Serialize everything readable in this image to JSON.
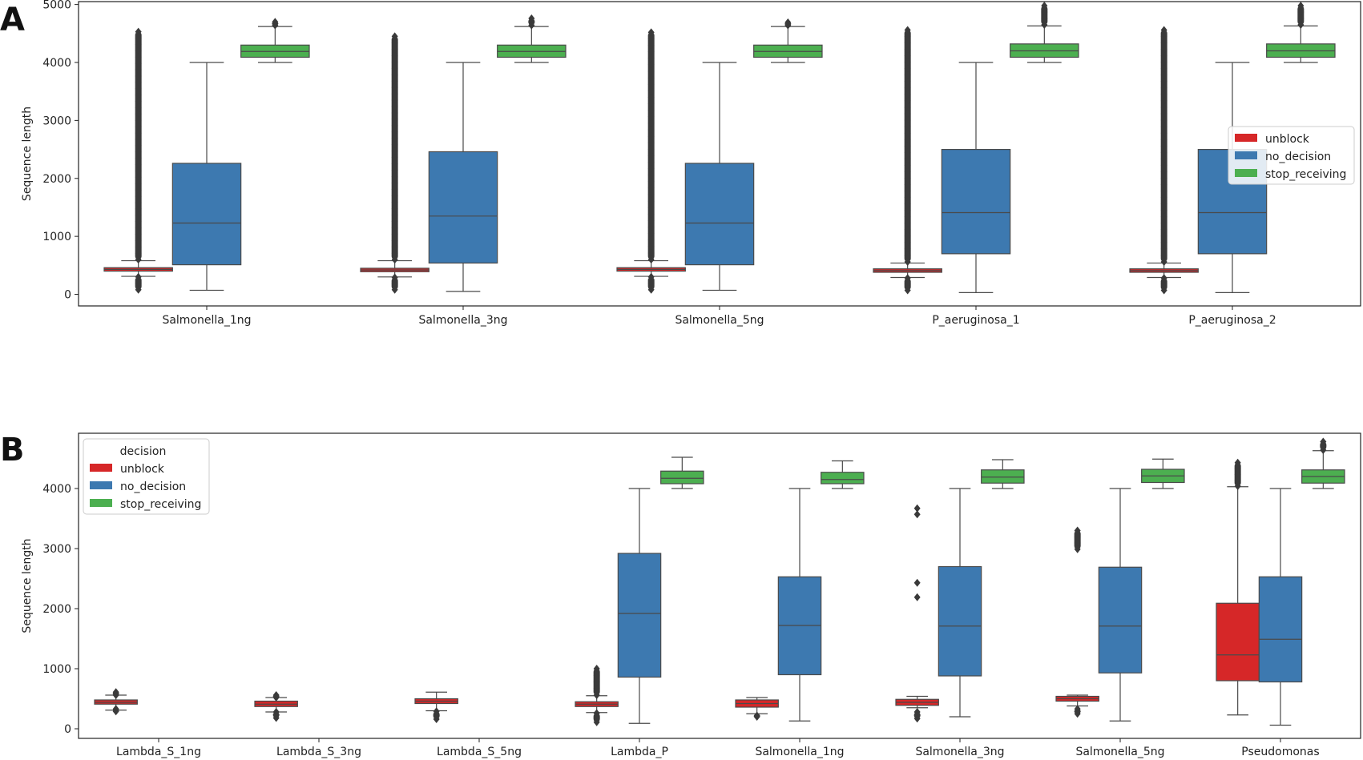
{
  "chart_data": [
    {
      "panel": "A",
      "type": "box",
      "ylabel": "Sequence length",
      "ylim": [
        -200,
        5050
      ],
      "yticks": [
        0,
        1000,
        2000,
        3000,
        4000,
        5000
      ],
      "grid": false,
      "legend": {
        "title": "",
        "placement": "right",
        "entries": [
          "unblock",
          "no_decision",
          "stop_receiving"
        ]
      },
      "colors": {
        "unblock": "#d62728",
        "no_decision": "#3d79b0",
        "stop_receiving": "#4caf50"
      },
      "categories": [
        "Salmonella_1ng",
        "Salmonella_3ng",
        "Salmonella_5ng",
        "P_aeruginosa_1",
        "P_aeruginosa_2"
      ],
      "series": [
        {
          "name": "unblock",
          "boxes": [
            {
              "q1": 400,
              "median": 430,
              "q3": 460,
              "whislo": 310,
              "whishi": 580,
              "out_lo": [
                80,
                300
              ],
              "out_hi": [
                600,
                4530
              ]
            },
            {
              "q1": 390,
              "median": 420,
              "q3": 450,
              "whislo": 300,
              "whishi": 580,
              "out_lo": [
                80,
                290
              ],
              "out_hi": [
                600,
                4450
              ]
            },
            {
              "q1": 400,
              "median": 430,
              "q3": 460,
              "whislo": 310,
              "whishi": 580,
              "out_lo": [
                80,
                300
              ],
              "out_hi": [
                600,
                4520
              ]
            },
            {
              "q1": 380,
              "median": 410,
              "q3": 440,
              "whislo": 290,
              "whishi": 540,
              "out_lo": [
                70,
                280
              ],
              "out_hi": [
                560,
                4560
              ]
            },
            {
              "q1": 380,
              "median": 410,
              "q3": 440,
              "whislo": 290,
              "whishi": 540,
              "out_lo": [
                70,
                280
              ],
              "out_hi": [
                560,
                4560
              ]
            }
          ]
        },
        {
          "name": "no_decision",
          "boxes": [
            {
              "q1": 510,
              "median": 1230,
              "q3": 2260,
              "whislo": 70,
              "whishi": 4000,
              "out_lo": null,
              "out_hi": null
            },
            {
              "q1": 540,
              "median": 1350,
              "q3": 2460,
              "whislo": 50,
              "whishi": 4000,
              "out_lo": null,
              "out_hi": null
            },
            {
              "q1": 510,
              "median": 1230,
              "q3": 2260,
              "whislo": 70,
              "whishi": 4000,
              "out_lo": null,
              "out_hi": null
            },
            {
              "q1": 700,
              "median": 1410,
              "q3": 2500,
              "whislo": 30,
              "whishi": 4000,
              "out_lo": null,
              "out_hi": null
            },
            {
              "q1": 700,
              "median": 1410,
              "q3": 2500,
              "whislo": 30,
              "whishi": 4000,
              "out_lo": null,
              "out_hi": null
            }
          ]
        },
        {
          "name": "stop_receiving",
          "boxes": [
            {
              "q1": 4090,
              "median": 4190,
              "q3": 4300,
              "whislo": 4000,
              "whishi": 4620,
              "out_lo": null,
              "out_hi": [
                4640,
                4700
              ]
            },
            {
              "q1": 4090,
              "median": 4190,
              "q3": 4300,
              "whislo": 4000,
              "whishi": 4620,
              "out_lo": null,
              "out_hi": [
                4640,
                4760
              ]
            },
            {
              "q1": 4090,
              "median": 4190,
              "q3": 4300,
              "whislo": 4000,
              "whishi": 4620,
              "out_lo": null,
              "out_hi": [
                4640,
                4690
              ]
            },
            {
              "q1": 4090,
              "median": 4200,
              "q3": 4320,
              "whislo": 4000,
              "whishi": 4630,
              "out_lo": null,
              "out_hi": [
                4650,
                4980
              ]
            },
            {
              "q1": 4090,
              "median": 4200,
              "q3": 4320,
              "whislo": 4000,
              "whishi": 4630,
              "out_lo": null,
              "out_hi": [
                4650,
                4980
              ]
            }
          ]
        }
      ]
    },
    {
      "panel": "B",
      "type": "box",
      "ylabel": "Sequence length",
      "ylim": [
        -160,
        4920
      ],
      "yticks": [
        0,
        1000,
        2000,
        3000,
        4000
      ],
      "grid": false,
      "legend": {
        "title": "decision",
        "placement": "upper-left",
        "entries": [
          "unblock",
          "no_decision",
          "stop_receiving"
        ]
      },
      "colors": {
        "unblock": "#d62728",
        "no_decision": "#3d79b0",
        "stop_receiving": "#4caf50"
      },
      "categories": [
        "Lambda_S_1ng",
        "Lambda_S_3ng",
        "Lambda_S_5ng",
        "Lambda_P",
        "Salmonella_1ng",
        "Salmonella_3ng",
        "Salmonella_5ng",
        "Pseudomonas"
      ],
      "series": [
        {
          "name": "unblock",
          "boxes": [
            {
              "q1": 410,
              "median": 440,
              "q3": 480,
              "whislo": 310,
              "whishi": 560,
              "out_lo": [
                290,
                330
              ],
              "out_hi": [
                560,
                610
              ]
            },
            {
              "q1": 370,
              "median": 410,
              "q3": 460,
              "whislo": 280,
              "whishi": 520,
              "out_lo": [
                180,
                280
              ],
              "out_hi": [
                520,
                560
              ]
            },
            {
              "q1": 420,
              "median": 460,
              "q3": 500,
              "whislo": 300,
              "whishi": 610,
              "out_lo": [
                160,
                290
              ],
              "out_hi": null
            },
            {
              "q1": 370,
              "median": 410,
              "q3": 450,
              "whislo": 270,
              "whishi": 550,
              "out_lo": [
                110,
                260
              ],
              "out_hi": [
                560,
                1000
              ]
            },
            {
              "q1": 360,
              "median": 420,
              "q3": 480,
              "whislo": 250,
              "whishi": 520,
              "out_lo": [
                200,
                220
              ],
              "out_hi": null
            },
            {
              "q1": 390,
              "median": 440,
              "q3": 490,
              "whislo": 350,
              "whishi": 540,
              "out_lo": [
                170,
                280
              ],
              "out_hi": [
                2190,
                2430,
                3570,
                3670
              ]
            },
            {
              "q1": 460,
              "median": 500,
              "q3": 540,
              "whislo": 380,
              "whishi": 560,
              "out_lo": [
                250,
                330
              ],
              "out_hi": [
                2990,
                3300
              ]
            },
            {
              "q1": 800,
              "median": 1230,
              "q3": 2090,
              "whislo": 230,
              "whishi": 4030,
              "out_lo": null,
              "out_hi": [
                4040,
                4430
              ]
            }
          ]
        },
        {
          "name": "no_decision",
          "boxes": [
            null,
            null,
            null,
            {
              "q1": 860,
              "median": 1920,
              "q3": 2920,
              "whislo": 90,
              "whishi": 4000,
              "out_lo": null,
              "out_hi": null
            },
            {
              "q1": 900,
              "median": 1720,
              "q3": 2530,
              "whislo": 130,
              "whishi": 4000,
              "out_lo": null,
              "out_hi": null
            },
            {
              "q1": 880,
              "median": 1710,
              "q3": 2700,
              "whislo": 200,
              "whishi": 4000,
              "out_lo": null,
              "out_hi": null
            },
            {
              "q1": 930,
              "median": 1710,
              "q3": 2690,
              "whislo": 130,
              "whishi": 4000,
              "out_lo": null,
              "out_hi": null
            },
            {
              "q1": 780,
              "median": 1490,
              "q3": 2530,
              "whislo": 60,
              "whishi": 4000,
              "out_lo": null,
              "out_hi": null
            }
          ]
        },
        {
          "name": "stop_receiving",
          "boxes": [
            null,
            null,
            null,
            {
              "q1": 4080,
              "median": 4170,
              "q3": 4290,
              "whislo": 4000,
              "whishi": 4520,
              "out_lo": null,
              "out_hi": null
            },
            {
              "q1": 4080,
              "median": 4150,
              "q3": 4270,
              "whislo": 4000,
              "whishi": 4460,
              "out_lo": null,
              "out_hi": null
            },
            {
              "q1": 4090,
              "median": 4190,
              "q3": 4310,
              "whislo": 4000,
              "whishi": 4480,
              "out_lo": null,
              "out_hi": null
            },
            {
              "q1": 4100,
              "median": 4210,
              "q3": 4320,
              "whislo": 4000,
              "whishi": 4490,
              "out_lo": null,
              "out_hi": null
            },
            {
              "q1": 4090,
              "median": 4200,
              "q3": 4310,
              "whislo": 4000,
              "whishi": 4630,
              "out_lo": null,
              "out_hi": [
                4640,
                4780
              ]
            }
          ]
        }
      ]
    }
  ]
}
